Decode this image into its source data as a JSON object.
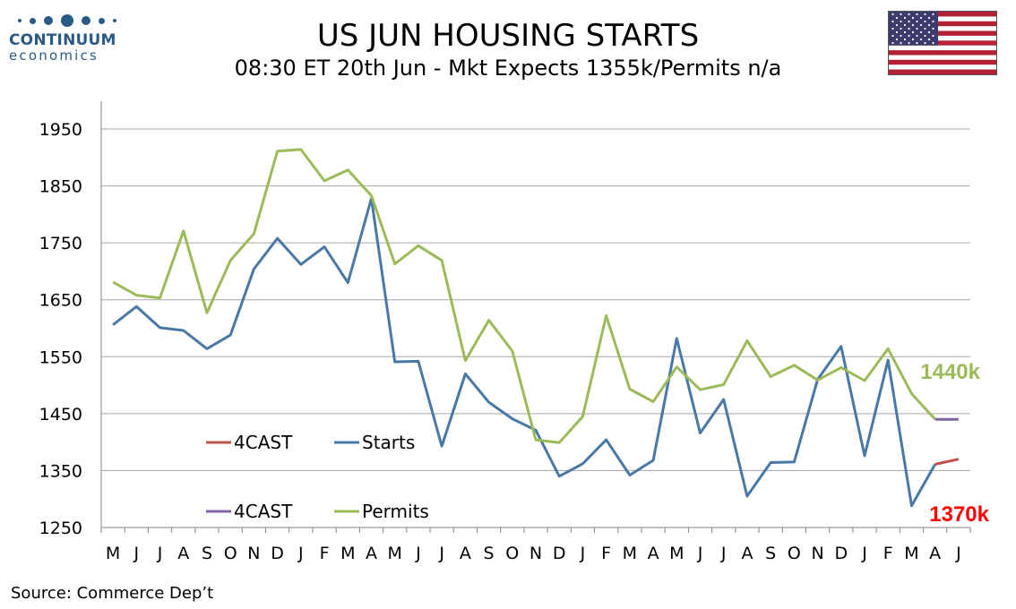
{
  "brand": {
    "name": "CONTINUUM",
    "sub": "economics"
  },
  "title": "US JUN HOUSING STARTS",
  "subtitle": "08:30 ET 20th Jun - Mkt Expects 1355k/Permits n/a",
  "source": "Source: Commerce Dep’t",
  "colors": {
    "starts": "#4a78a6",
    "permits": "#9bbb59",
    "forecast_starts": "#c0504d",
    "forecast_permits": "#8064a2",
    "label_red": "#ff0000",
    "label_green": "#9bbb59"
  },
  "chart_data": {
    "type": "line",
    "categories": [
      "M",
      "J",
      "J",
      "A",
      "S",
      "O",
      "N",
      "D",
      "J",
      "F",
      "M",
      "A",
      "M",
      "J",
      "J",
      "A",
      "S",
      "O",
      "N",
      "D",
      "J",
      "F",
      "M",
      "A",
      "M",
      "J",
      "J",
      "A",
      "S",
      "O",
      "N",
      "D",
      "J",
      "F",
      "M",
      "A",
      "J"
    ],
    "ylim": [
      1250,
      1950
    ],
    "yticks": [
      1250,
      1350,
      1450,
      1550,
      1650,
      1750,
      1850,
      1950
    ],
    "grid": true,
    "series": [
      {
        "name": "Starts",
        "color": "#4a78a6",
        "values": [
          1606,
          1638,
          1601,
          1596,
          1564,
          1588,
          1704,
          1758,
          1712,
          1743,
          1680,
          1828,
          1541,
          1542,
          1393,
          1520,
          1470,
          1441,
          1421,
          1340,
          1362,
          1404,
          1342,
          1368,
          1582,
          1416,
          1475,
          1305,
          1364,
          1365,
          1510,
          1568,
          1376,
          1544,
          1288,
          1361,
          null
        ]
      },
      {
        "name": "4CAST",
        "color": "#c0504d",
        "values": [
          null,
          null,
          null,
          null,
          null,
          null,
          null,
          null,
          null,
          null,
          null,
          null,
          null,
          null,
          null,
          null,
          null,
          null,
          null,
          null,
          null,
          null,
          null,
          null,
          null,
          null,
          null,
          null,
          null,
          null,
          null,
          null,
          null,
          null,
          null,
          1361,
          1370
        ]
      },
      {
        "name": "Permits",
        "color": "#9bbb59",
        "values": [
          1681,
          1658,
          1653,
          1771,
          1627,
          1719,
          1766,
          1911,
          1914,
          1859,
          1878,
          1833,
          1713,
          1745,
          1719,
          1543,
          1614,
          1560,
          1404,
          1399,
          1445,
          1622,
          1493,
          1471,
          1532,
          1492,
          1501,
          1578,
          1515,
          1535,
          1509,
          1531,
          1508,
          1564,
          1485,
          1440,
          null
        ]
      },
      {
        "name": "4CAST",
        "color": "#8064a2",
        "values": [
          null,
          null,
          null,
          null,
          null,
          null,
          null,
          null,
          null,
          null,
          null,
          null,
          null,
          null,
          null,
          null,
          null,
          null,
          null,
          null,
          null,
          null,
          null,
          null,
          null,
          null,
          null,
          null,
          null,
          null,
          null,
          null,
          null,
          null,
          null,
          1440,
          1440
        ]
      }
    ],
    "legend": [
      {
        "label": "4CAST",
        "color": "#c0504d"
      },
      {
        "label": "Starts",
        "color": "#4a78a6"
      },
      {
        "label": "4CAST",
        "color": "#8064a2"
      },
      {
        "label": "Permits",
        "color": "#9bbb59"
      }
    ],
    "legend_position": "lower-left",
    "annotations": [
      {
        "text": "1440k",
        "color": "#9bbb59"
      },
      {
        "text": "1370k",
        "color": "#ff0000"
      }
    ]
  }
}
